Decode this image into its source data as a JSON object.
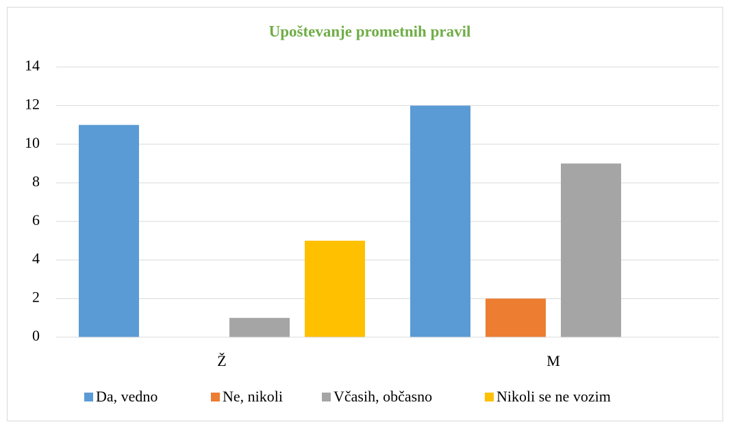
{
  "chart_data": {
    "type": "bar",
    "title": "Upoštevanje prometnih pravil",
    "categories": [
      "Ž",
      "M"
    ],
    "series": [
      {
        "name": "Da, vedno",
        "color": "#5b9bd5",
        "values": [
          11,
          12
        ]
      },
      {
        "name": "Ne, nikoli",
        "color": "#ed7d31",
        "values": [
          0,
          2
        ]
      },
      {
        "name": "Včasih, občasno",
        "color": "#a5a5a5",
        "values": [
          1,
          9
        ]
      },
      {
        "name": "Nikoli se ne vozim",
        "color": "#ffc000",
        "values": [
          5,
          0
        ]
      }
    ],
    "ylim": [
      0,
      14
    ],
    "yticks": [
      0,
      2,
      4,
      6,
      8,
      10,
      12,
      14
    ],
    "grid": true,
    "legend": "bottom"
  }
}
